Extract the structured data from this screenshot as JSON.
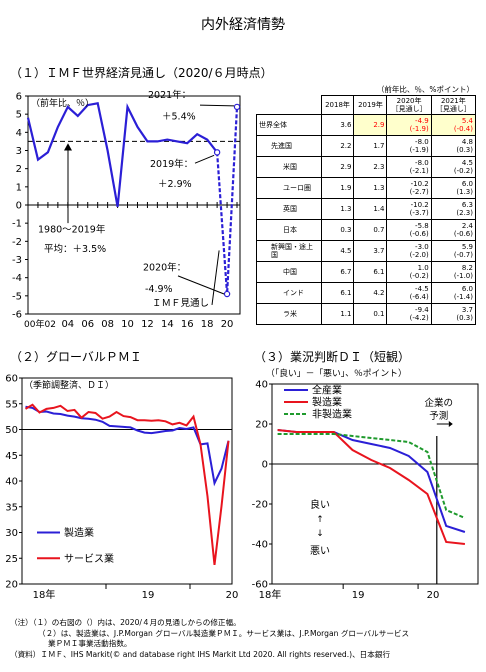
{
  "page_title": "内外経済情勢",
  "section1": {
    "title": "（１）ＩＭＦ世界経済見通し（2020/６月時点）",
    "unit_left": "（前年比、％）",
    "unit_table": "（前年比、％、%ポイント）",
    "annotations": {
      "avg": [
        "1980～2019年",
        "平均：＋3.5%"
      ],
      "y2019": [
        "2019年：",
        "＋2.9%"
      ],
      "y2020": [
        "2020年：",
        "-4.9%"
      ],
      "y2021": [
        "2021年：",
        "＋5.4%"
      ],
      "imf": "ＩＭＦ見通し"
    }
  },
  "chart_data": [
    {
      "type": "line",
      "x": [
        2000,
        2001,
        2002,
        2003,
        2004,
        2005,
        2006,
        2007,
        2008,
        2009,
        2010,
        2011,
        2012,
        2013,
        2014,
        2015,
        2016,
        2017,
        2018,
        2019,
        2020,
        2021
      ],
      "series": [
        {
          "values": [
            4.8,
            2.5,
            2.9,
            4.3,
            5.4,
            4.9,
            5.5,
            5.6,
            3.0,
            -0.1,
            5.4,
            4.3,
            3.5,
            3.5,
            3.6,
            3.5,
            3.4,
            3.9,
            3.6,
            2.9,
            -4.9,
            5.4
          ]
        }
      ],
      "reference_line": 3.5,
      "ylim": [
        -6,
        6
      ],
      "yticks": [
        -6,
        -5,
        -4,
        -3,
        -2,
        -1,
        0,
        1,
        2,
        3,
        4,
        5,
        6
      ],
      "xtick_labels": [
        "00年02",
        "04",
        "06",
        "08",
        "10",
        "12",
        "14",
        "16",
        "18",
        "20"
      ]
    },
    {
      "type": "line",
      "title": "（２）グローバルＰＭＩ",
      "ylabel": "（季節調整済、ＤＩ）",
      "ylim": [
        20,
        60
      ],
      "yticks": [
        20,
        25,
        30,
        35,
        40,
        45,
        50,
        55,
        60
      ],
      "x": [
        "2018-01",
        "2018-02",
        "2018-03",
        "2018-04",
        "2018-05",
        "2018-06",
        "2018-07",
        "2018-08",
        "2018-09",
        "2018-10",
        "2018-11",
        "2018-12",
        "2019-01",
        "2019-02",
        "2019-03",
        "2019-04",
        "2019-05",
        "2019-06",
        "2019-07",
        "2019-08",
        "2019-09",
        "2019-10",
        "2019-11",
        "2019-12",
        "2020-01",
        "2020-02",
        "2020-03",
        "2020-04",
        "2020-05",
        "2020-06"
      ],
      "xtick_labels": [
        "18年",
        "19",
        "20"
      ],
      "series": [
        {
          "name": "製造業",
          "color": "#2b1fd6",
          "values": [
            54.4,
            54.2,
            53.4,
            53.5,
            53.1,
            53.0,
            52.7,
            52.5,
            52.2,
            52.1,
            51.9,
            51.5,
            50.7,
            50.6,
            50.5,
            50.4,
            49.8,
            49.4,
            49.3,
            49.5,
            49.7,
            49.8,
            50.3,
            50.1,
            50.4,
            47.1,
            47.3,
            39.6,
            42.4,
            47.8
          ]
        },
        {
          "name": "サービス業",
          "color": "#e8141e",
          "values": [
            54.0,
            54.8,
            53.3,
            54.0,
            54.2,
            54.6,
            53.6,
            53.8,
            52.3,
            53.4,
            53.2,
            52.1,
            52.5,
            53.4,
            52.6,
            52.4,
            51.8,
            51.8,
            51.7,
            51.8,
            51.6,
            51.0,
            51.3,
            50.8,
            52.5,
            47.1,
            37.0,
            23.7,
            35.1,
            47.8
          ]
        }
      ]
    },
    {
      "type": "line",
      "title": "（３）業況判断ＤＩ（短観）",
      "ylabel": "（「良い」－「悪い」、％ポイント）",
      "ylim": [
        -60,
        40
      ],
      "yticks": [
        -60,
        -40,
        -20,
        0,
        20,
        40
      ],
      "x": [
        "2018Q1",
        "2018Q2",
        "2018Q3",
        "2018Q4",
        "2019Q1",
        "2019Q2",
        "2019Q3",
        "2019Q4",
        "2020Q1",
        "2020Q2",
        "2020Q3"
      ],
      "xtick_labels": [
        "18年",
        "19",
        "20"
      ],
      "forecast_label": [
        "企業の",
        "予測"
      ],
      "axis_hint": [
        "良い",
        "↑",
        "↓",
        "悪い"
      ],
      "series": [
        {
          "name": "全産業",
          "color": "#2b1fd6",
          "dash": "solid",
          "values": [
            17,
            16,
            16,
            16,
            12,
            10,
            8,
            4,
            -4,
            -31,
            -34
          ]
        },
        {
          "name": "製造業",
          "color": "#e8141e",
          "dash": "solid",
          "values": [
            17,
            16,
            16,
            16,
            7,
            2,
            -2,
            -8,
            -15,
            -39,
            -40
          ]
        },
        {
          "name": "非製造業",
          "color": "#1f9a2d",
          "dash": "dashed",
          "values": [
            15,
            15,
            15,
            15,
            14,
            13,
            12,
            11,
            6,
            -23,
            -27
          ]
        }
      ]
    }
  ],
  "imf_table": {
    "headers": [
      "2018年",
      "2019年",
      "2020年",
      "［見通し］",
      "2021年",
      "［見通し］"
    ],
    "rows": [
      {
        "label": "世界全体",
        "indent": 0,
        "v2018": "3.6",
        "v2019": "2.9",
        "v2020": "-4.9",
        "r2020": "(-1.9)",
        "v2021": "5.4",
        "r2021": "(-0.4)",
        "highlight": true
      },
      {
        "label": "先進国",
        "indent": 1,
        "v2018": "2.2",
        "v2019": "1.7",
        "v2020": "-8.0",
        "r2020": "(-1.9)",
        "v2021": "4.8",
        "r2021": "(0.3)"
      },
      {
        "label": "米国",
        "indent": 2,
        "v2018": "2.9",
        "v2019": "2.3",
        "v2020": "-8.0",
        "r2020": "(-2.1)",
        "v2021": "4.5",
        "r2021": "(-0.2)"
      },
      {
        "label": "ユーロ圏",
        "indent": 2,
        "v2018": "1.9",
        "v2019": "1.3",
        "v2020": "-10.2",
        "r2020": "(-2.7)",
        "v2021": "6.0",
        "r2021": "(1.3)"
      },
      {
        "label": "英国",
        "indent": 2,
        "v2018": "1.3",
        "v2019": "1.4",
        "v2020": "-10.2",
        "r2020": "(-3.7)",
        "v2021": "6.3",
        "r2021": "(2.3)"
      },
      {
        "label": "日本",
        "indent": 2,
        "v2018": "0.3",
        "v2019": "0.7",
        "v2020": "-5.8",
        "r2020": "(-0.6)",
        "v2021": "2.4",
        "r2021": "(-0.6)"
      },
      {
        "label": "新興国・途上国",
        "indent": 1,
        "v2018": "4.5",
        "v2019": "3.7",
        "v2020": "-3.0",
        "r2020": "(-2.0)",
        "v2021": "5.9",
        "r2021": "(-0.7)"
      },
      {
        "label": "中国",
        "indent": 2,
        "v2018": "6.7",
        "v2019": "6.1",
        "v2020": "1.0",
        "r2020": "(-0.2)",
        "v2021": "8.2",
        "r2021": "(-1.0)"
      },
      {
        "label": "インド",
        "indent": 2,
        "v2018": "6.1",
        "v2019": "4.2",
        "v2020": "-4.5",
        "r2020": "(-6.4)",
        "v2021": "6.0",
        "r2021": "(-1.4)"
      },
      {
        "label": "ラ米",
        "indent": 2,
        "v2018": "1.1",
        "v2019": "0.1",
        "v2020": "-9.4",
        "r2020": "(-4.2)",
        "v2021": "3.7",
        "r2021": "(0.3)"
      }
    ]
  },
  "notes": [
    "（注）（１）の右図の（）内は、2020/４月の見通しからの修正幅。",
    "（２）は、製造業は、J.P.Morgan グローバル製造業ＰＭＩ。サービス業は、J.P.Morgan グローバルサービス",
    "業ＰＭＩ事業活動指数。",
    "（資料）ＩＭＦ、IHS Markit(© and database right IHS Markit Ltd 2020. All rights reserved.)、日本銀行"
  ]
}
